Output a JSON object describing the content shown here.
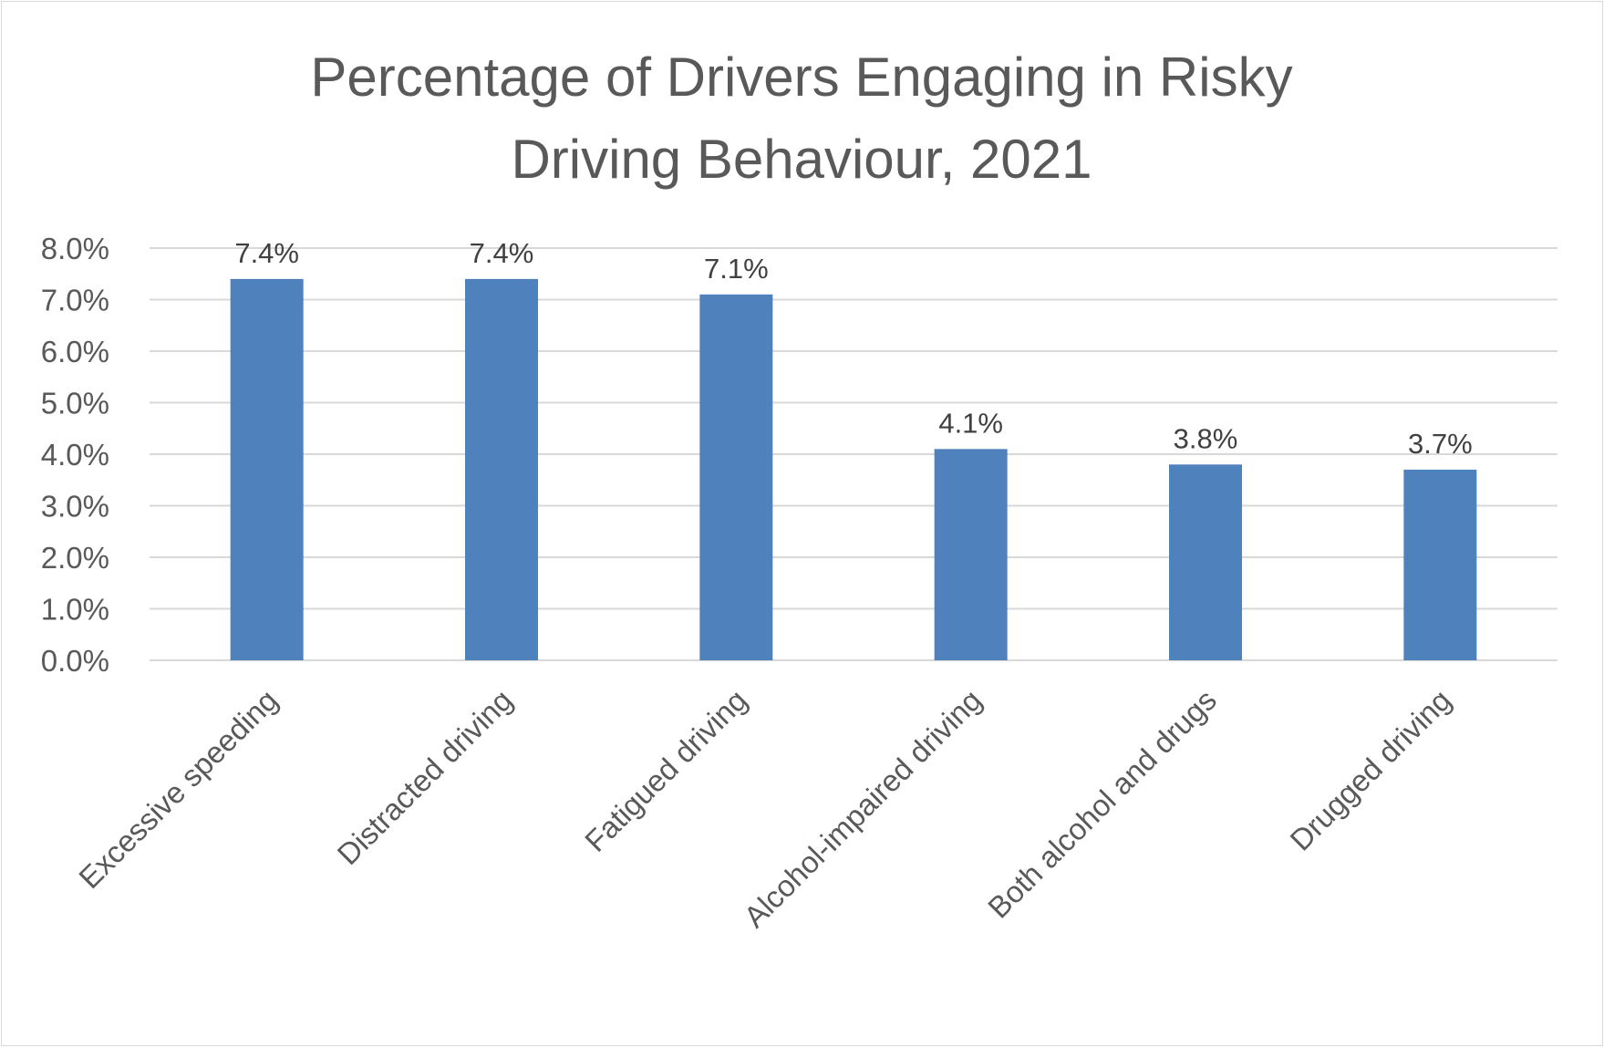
{
  "chart_data": {
    "type": "bar",
    "title_lines": [
      "Percentage of Drivers Engaging in Risky",
      "Driving Behaviour, 2021"
    ],
    "categories": [
      "Excessive speeding",
      "Distracted driving",
      "Fatigued driving",
      "Alcohol-impaired driving",
      "Both alcohol and drugs",
      "Drugged driving"
    ],
    "values": [
      7.4,
      7.4,
      7.1,
      4.1,
      3.8,
      3.7
    ],
    "data_labels": [
      "7.4%",
      "7.4%",
      "7.1%",
      "4.1%",
      "3.8%",
      "3.7%"
    ],
    "yticks": [
      "0.0%",
      "1.0%",
      "2.0%",
      "3.0%",
      "4.0%",
      "5.0%",
      "6.0%",
      "7.0%",
      "8.0%"
    ],
    "ylim": [
      0,
      8
    ],
    "grid": true,
    "legend": "none",
    "bar_color": "#4f81bd"
  }
}
